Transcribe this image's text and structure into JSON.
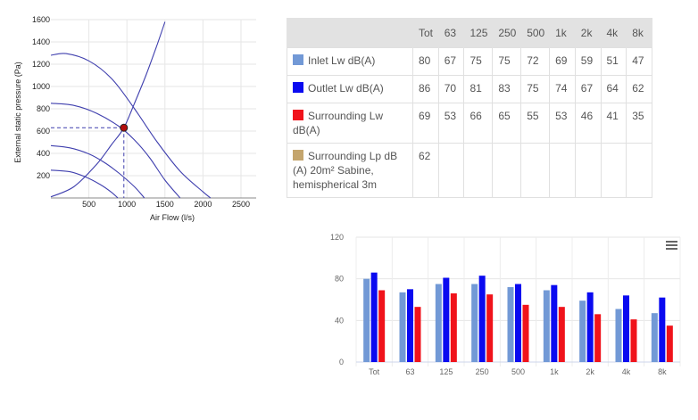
{
  "colors": {
    "inlet": "#7299d6",
    "outlet": "#0a0af0",
    "surrounding_lw": "#f0131b",
    "surrounding_lp": "#c4a56d",
    "fan_curve": "#3f3fae",
    "operating_point": "#b20d0d"
  },
  "fan_chart": {
    "ylabel": "External static pressure (Pa)",
    "xlabel": "Air Flow (l/s)",
    "x_ticks": [
      "500",
      "1000",
      "1500",
      "2000",
      "2500"
    ],
    "y_ticks": [
      "200",
      "400",
      "600",
      "800",
      "1000",
      "1200",
      "1400",
      "1600"
    ]
  },
  "table": {
    "columns": [
      "Tot",
      "63",
      "125",
      "250",
      "500",
      "1k",
      "2k",
      "4k",
      "8k"
    ],
    "rows": [
      {
        "label": "Inlet Lw dB(A)",
        "color": "#7299d6",
        "values": [
          "80",
          "67",
          "75",
          "75",
          "72",
          "69",
          "59",
          "51",
          "47"
        ]
      },
      {
        "label": "Outlet Lw dB(A)",
        "color": "#0a0af0",
        "values": [
          "86",
          "70",
          "81",
          "83",
          "75",
          "74",
          "67",
          "64",
          "62"
        ]
      },
      {
        "label": "Surrounding Lw dB(A)",
        "color": "#f0131b",
        "values": [
          "69",
          "53",
          "66",
          "65",
          "55",
          "53",
          "46",
          "41",
          "35"
        ]
      },
      {
        "label": "Surrounding Lp dB (A) 20m² Sabine, hemispherical 3m",
        "color": "#c4a56d",
        "values": [
          "62",
          "",
          "",
          "",
          "",
          "",
          "",
          "",
          ""
        ]
      }
    ]
  },
  "chart_data": [
    {
      "type": "line",
      "xlabel": "Air Flow (l/s)",
      "ylabel": "External static pressure (Pa)",
      "xlim": [
        0,
        2700
      ],
      "ylim": [
        0,
        1600
      ],
      "x_ticks": [
        500,
        1000,
        1500,
        2000,
        2500
      ],
      "y_ticks": [
        200,
        400,
        600,
        800,
        1000,
        1200,
        1400,
        1600
      ],
      "grid": true,
      "series": [
        {
          "points": [
            [
              0,
              1280
            ],
            [
              200,
              1295
            ],
            [
              500,
              1230
            ],
            [
              800,
              1070
            ],
            [
              1100,
              800
            ],
            [
              1400,
              500
            ],
            [
              1700,
              240
            ],
            [
              2000,
              55
            ],
            [
              2100,
              0
            ]
          ]
        },
        {
          "points": [
            [
              0,
              850
            ],
            [
              300,
              830
            ],
            [
              600,
              760
            ],
            [
              900,
              640
            ],
            [
              1100,
              520
            ],
            [
              1300,
              360
            ],
            [
              1500,
              160
            ],
            [
              1700,
              0
            ]
          ]
        },
        {
          "points": [
            [
              0,
              470
            ],
            [
              250,
              450
            ],
            [
              500,
              395
            ],
            [
              700,
              320
            ],
            [
              900,
              220
            ],
            [
              1100,
              100
            ],
            [
              1230,
              0
            ]
          ]
        },
        {
          "points": [
            [
              0,
              250
            ],
            [
              250,
              235
            ],
            [
              450,
              190
            ],
            [
              650,
              120
            ],
            [
              800,
              50
            ],
            [
              880,
              0
            ]
          ]
        },
        {
          "points": [
            [
              0,
              10
            ],
            [
              300,
              100
            ],
            [
              600,
              300
            ],
            [
              800,
              480
            ],
            [
              960,
              630
            ],
            [
              1100,
              850
            ],
            [
              1250,
              1100
            ],
            [
              1400,
              1380
            ],
            [
              1500,
              1580
            ]
          ]
        }
      ],
      "operating_point": {
        "x": 960,
        "y": 630
      }
    },
    {
      "type": "bar",
      "categories": [
        "Tot",
        "63",
        "125",
        "250",
        "500",
        "1k",
        "2k",
        "4k",
        "8k"
      ],
      "ylim": [
        0,
        120
      ],
      "y_ticks": [
        0,
        40,
        80,
        120
      ],
      "grid": true,
      "series": [
        {
          "name": "Inlet Lw dB(A)",
          "color": "#7299d6",
          "values": [
            80,
            67,
            75,
            75,
            72,
            69,
            59,
            51,
            47
          ]
        },
        {
          "name": "Outlet Lw dB(A)",
          "color": "#0a0af0",
          "values": [
            86,
            70,
            81,
            83,
            75,
            74,
            67,
            64,
            62
          ]
        },
        {
          "name": "Surrounding Lw dB(A)",
          "color": "#f0131b",
          "values": [
            69,
            53,
            66,
            65,
            55,
            53,
            46,
            41,
            35
          ]
        }
      ]
    }
  ]
}
